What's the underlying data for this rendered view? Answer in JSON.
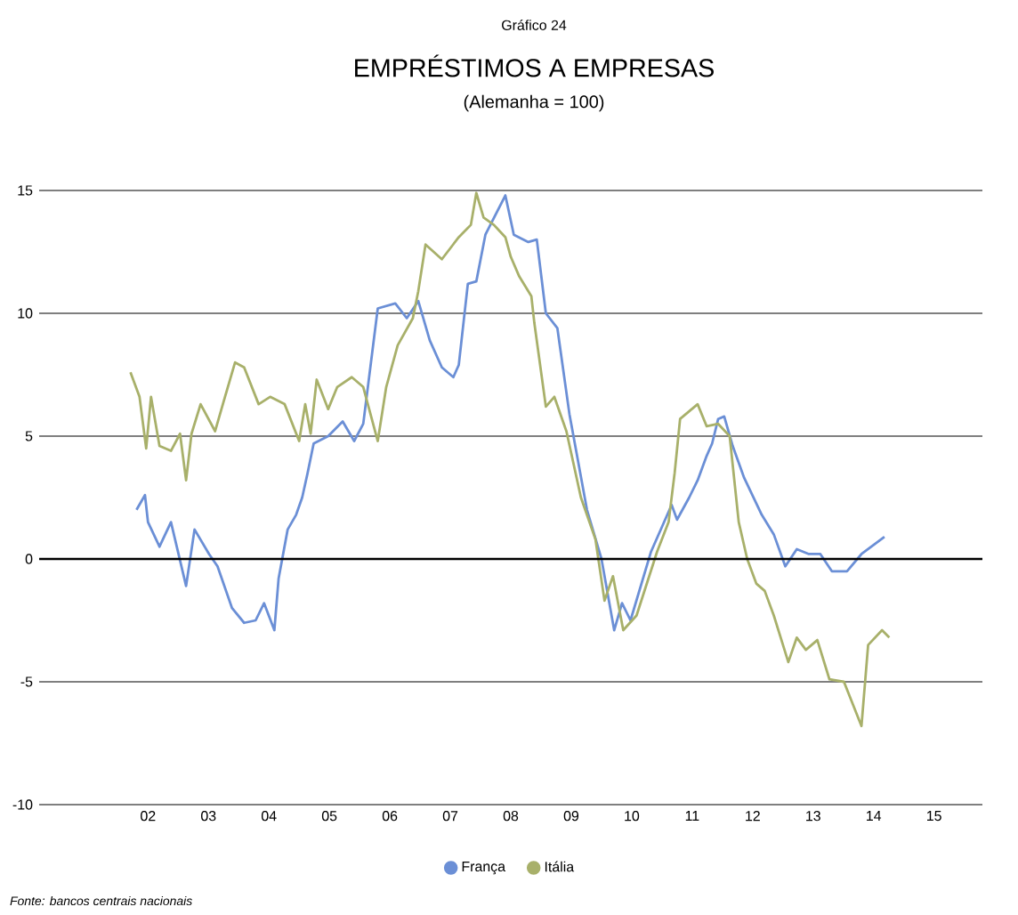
{
  "chart_data": {
    "type": "line",
    "title": "EMPRÉSTIMOS A EMPRESAS",
    "subtitle": "(Alemanha = 100)",
    "annotations": [
      "Gráfico 24",
      "Fonte: bancos centrais nacionais"
    ],
    "xlim": [
      2000.2,
      2015.8
    ],
    "xticks": [
      {
        "value": 2002,
        "label": "02"
      },
      {
        "value": 2003,
        "label": "03"
      },
      {
        "value": 2004,
        "label": "04"
      },
      {
        "value": 2005,
        "label": "05"
      },
      {
        "value": 2006,
        "label": "06"
      },
      {
        "value": 2007,
        "label": "07"
      },
      {
        "value": 2008,
        "label": "08"
      },
      {
        "value": 2009,
        "label": "09"
      },
      {
        "value": 2010,
        "label": "10"
      },
      {
        "value": 2011,
        "label": "11"
      },
      {
        "value": 2012,
        "label": "12"
      },
      {
        "value": 2013,
        "label": "13"
      },
      {
        "value": 2014,
        "label": "14"
      },
      {
        "value": 2015,
        "label": "15"
      }
    ],
    "ylim": [
      -10,
      15
    ],
    "yticks": [
      -10,
      -5,
      0,
      5,
      10,
      15
    ],
    "grid": "y",
    "legend": "bottom",
    "marker": "none",
    "line_style": "solid",
    "ref_lines": [
      {
        "axis": "y",
        "value": 0
      }
    ],
    "series": [
      {
        "name": "França",
        "color": "#6b8fd6",
        "x": [
          2001.81,
          2001.95,
          2002.0,
          2002.19,
          2002.38,
          2002.63,
          2002.77,
          2003.01,
          2003.15,
          2003.39,
          2003.59,
          2003.78,
          2003.92,
          2004.09,
          2004.16,
          2004.31,
          2004.45,
          2004.55,
          2004.64,
          2004.74,
          2004.98,
          2005.22,
          2005.41,
          2005.56,
          2005.8,
          2006.09,
          2006.28,
          2006.47,
          2006.66,
          2006.86,
          2007.05,
          2007.14,
          2007.29,
          2007.43,
          2007.58,
          2007.91,
          2008.05,
          2008.29,
          2008.43,
          2008.58,
          2008.77,
          2008.97,
          2009.26,
          2009.5,
          2009.71,
          2009.84,
          2009.98,
          2010.32,
          2010.66,
          2010.75,
          2010.95,
          2011.09,
          2011.24,
          2011.33,
          2011.43,
          2011.53,
          2011.67,
          2011.86,
          2012.15,
          2012.35,
          2012.54,
          2012.73,
          2012.93,
          2013.12,
          2013.31,
          2013.56,
          2013.8,
          2014.18
        ],
        "values": [
          2.0,
          2.6,
          1.5,
          0.5,
          1.5,
          -1.1,
          1.2,
          0.2,
          -0.3,
          -2.0,
          -2.6,
          -2.5,
          -1.8,
          -2.9,
          -0.8,
          1.2,
          1.8,
          2.5,
          3.5,
          4.7,
          5.0,
          5.6,
          4.8,
          5.5,
          10.2,
          10.4,
          9.8,
          10.5,
          8.9,
          7.8,
          7.4,
          7.9,
          11.2,
          11.3,
          13.2,
          14.8,
          13.2,
          12.9,
          13.0,
          10.0,
          9.4,
          5.9,
          2.0,
          0.0,
          -2.9,
          -1.8,
          -2.5,
          0.3,
          2.2,
          1.6,
          2.5,
          3.2,
          4.2,
          4.7,
          5.7,
          5.8,
          4.6,
          3.3,
          1.8,
          1.0,
          -0.3,
          0.4,
          0.2,
          0.2,
          -0.5,
          -0.5,
          0.2,
          0.9
        ]
      },
      {
        "name": "Itália",
        "color": "#a8b06a",
        "x": [
          2001.71,
          2001.86,
          2001.97,
          2002.05,
          2002.19,
          2002.38,
          2002.53,
          2002.63,
          2002.72,
          2002.87,
          2003.11,
          2003.25,
          2003.44,
          2003.59,
          2003.83,
          2004.02,
          2004.26,
          2004.5,
          2004.6,
          2004.69,
          2004.79,
          2004.98,
          2005.13,
          2005.37,
          2005.56,
          2005.8,
          2005.94,
          2006.13,
          2006.38,
          2006.47,
          2006.59,
          2006.86,
          2007.14,
          2007.34,
          2007.43,
          2007.55,
          2007.72,
          2007.91,
          2008.0,
          2008.14,
          2008.34,
          2008.39,
          2008.58,
          2008.72,
          2008.92,
          2009.16,
          2009.4,
          2009.55,
          2009.69,
          2009.86,
          2010.08,
          2010.42,
          2010.61,
          2010.71,
          2010.8,
          2011.09,
          2011.24,
          2011.43,
          2011.62,
          2011.77,
          2011.91,
          2012.06,
          2012.2,
          2012.35,
          2012.59,
          2012.73,
          2012.88,
          2013.07,
          2013.27,
          2013.51,
          2013.8,
          2013.91,
          2014.14,
          2014.26
        ],
        "values": [
          7.6,
          6.6,
          4.5,
          6.6,
          4.6,
          4.4,
          5.1,
          3.2,
          5.1,
          6.3,
          5.2,
          6.4,
          8.0,
          7.8,
          6.3,
          6.6,
          6.3,
          4.8,
          6.3,
          5.1,
          7.3,
          6.1,
          7.0,
          7.4,
          7.0,
          4.8,
          7.0,
          8.7,
          9.8,
          10.9,
          12.8,
          12.2,
          13.1,
          13.6,
          14.9,
          13.9,
          13.6,
          13.1,
          12.3,
          11.5,
          10.7,
          9.6,
          6.2,
          6.6,
          5.2,
          2.5,
          0.8,
          -1.7,
          -0.7,
          -2.9,
          -2.3,
          0.3,
          1.5,
          3.5,
          5.7,
          6.3,
          5.4,
          5.5,
          5.0,
          1.5,
          0.0,
          -1.0,
          -1.3,
          -2.3,
          -4.2,
          -3.2,
          -3.7,
          -3.3,
          -4.9,
          -5.0,
          -6.8,
          -3.5,
          -2.9,
          -3.2
        ]
      }
    ]
  }
}
